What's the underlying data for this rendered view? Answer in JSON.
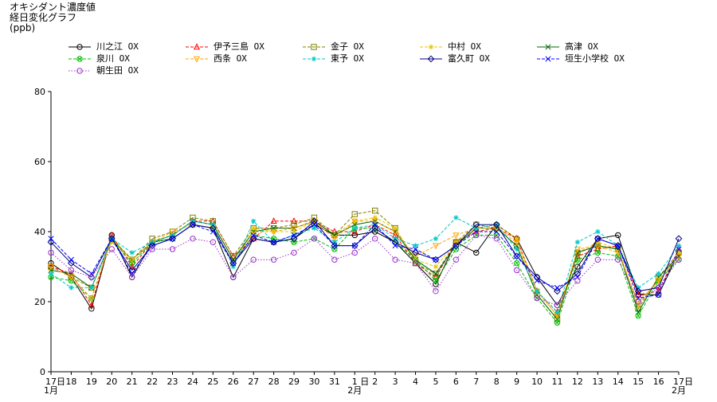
{
  "header": {
    "title": "オキシダント濃度値",
    "subtitle": "経日変化グラフ",
    "unit": "(ppb)"
  },
  "chart_data": {
    "type": "line",
    "title": "オキシダント濃度値 経日変化グラフ",
    "ylabel": "(ppb)",
    "ylim": [
      0,
      80
    ],
    "yticks": [
      0,
      20,
      40,
      60,
      80
    ],
    "categories": [
      "17",
      "18",
      "19",
      "20",
      "21",
      "22",
      "23",
      "24",
      "25",
      "26",
      "27",
      "28",
      "29",
      "30",
      "31",
      "1",
      "2",
      "3",
      "4",
      "5",
      "6",
      "7",
      "8",
      "9",
      "10",
      "11",
      "12",
      "13",
      "14",
      "15",
      "16",
      "17"
    ],
    "month_labels": [
      {
        "index": 0,
        "text": "1月"
      },
      {
        "index": 15,
        "text": "2月"
      },
      {
        "index": 31,
        "text": "2月"
      }
    ],
    "day_suffix": [
      {
        "index": 0,
        "text": "日"
      },
      {
        "index": 15,
        "text": "日"
      },
      {
        "index": 31,
        "text": "日"
      }
    ],
    "series": [
      {
        "name": "川之江 OX",
        "color": "#000000",
        "marker": "circle",
        "dash": "solid",
        "values": [
          31,
          27,
          18,
          39,
          27,
          37,
          38,
          42,
          41,
          27,
          38,
          37,
          38,
          42,
          39,
          39,
          40,
          37,
          31,
          25,
          37,
          34,
          42,
          38,
          27,
          19,
          30,
          38,
          39,
          22,
          22,
          34
        ]
      },
      {
        "name": "伊予三島 OX",
        "color": "#ff0000",
        "marker": "triangle",
        "dash": "dashed",
        "values": [
          30,
          28,
          19,
          39,
          30,
          37,
          39,
          43,
          43,
          33,
          38,
          43,
          43,
          43,
          40,
          40,
          42,
          39,
          31,
          27,
          37,
          40,
          41,
          38,
          23,
          17,
          33,
          35,
          36,
          22,
          23,
          35
        ]
      },
      {
        "name": "金子 OX",
        "color": "#808000",
        "marker": "square",
        "dash": "dashed",
        "values": [
          30,
          27,
          24,
          38,
          32,
          38,
          40,
          44,
          43,
          33,
          41,
          41,
          42,
          44,
          39,
          45,
          46,
          41,
          31,
          28,
          37,
          42,
          41,
          36,
          22,
          15,
          34,
          36,
          35,
          18,
          27,
          34
        ]
      },
      {
        "name": "中村 OX",
        "color": "#e6c800",
        "marker": "star",
        "dash": "dashed",
        "values": [
          29,
          28,
          24,
          37,
          32,
          37,
          39,
          43,
          42,
          32,
          41,
          40,
          40,
          43,
          39,
          43,
          44,
          41,
          32,
          30,
          37,
          41,
          42,
          38,
          23,
          16,
          34,
          37,
          35,
          19,
          26,
          34
        ]
      },
      {
        "name": "高津 OX",
        "color": "#006400",
        "marker": "x",
        "dash": "solid",
        "values": [
          29,
          28,
          24,
          38,
          32,
          37,
          39,
          43,
          42,
          32,
          40,
          41,
          41,
          43,
          39,
          42,
          43,
          40,
          32,
          28,
          36,
          41,
          41,
          36,
          22,
          15,
          34,
          36,
          35,
          17,
          27,
          33
        ]
      },
      {
        "name": "泉川 OX",
        "color": "#00c000",
        "marker": "circle-x",
        "dash": "dashed",
        "values": [
          27,
          26,
          21,
          38,
          31,
          37,
          38,
          42,
          41,
          31,
          39,
          38,
          37,
          38,
          35,
          41,
          41,
          37,
          32,
          26,
          35,
          39,
          39,
          31,
          21,
          14,
          32,
          34,
          33,
          16,
          26,
          32
        ]
      },
      {
        "name": "西条 OX",
        "color": "#ffa500",
        "marker": "triangle-down",
        "dash": "dashed",
        "values": [
          30,
          27,
          21,
          38,
          32,
          37,
          40,
          42,
          41,
          31,
          40,
          40,
          41,
          43,
          38,
          43,
          43,
          40,
          33,
          36,
          39,
          41,
          41,
          37,
          23,
          16,
          35,
          36,
          34,
          20,
          26,
          33
        ]
      },
      {
        "name": "東予 OX",
        "color": "#00c8c8",
        "marker": "star",
        "dash": "dashed",
        "values": [
          28,
          24,
          24,
          38,
          34,
          37,
          39,
          43,
          42,
          30,
          43,
          37,
          39,
          41,
          37,
          41,
          42,
          38,
          36,
          38,
          44,
          41,
          42,
          35,
          23,
          17,
          37,
          40,
          36,
          24,
          28,
          36
        ]
      },
      {
        "name": "富久町 OX",
        "color": "#000080",
        "marker": "diamond",
        "dash": "solid",
        "values": [
          37,
          31,
          27,
          38,
          29,
          36,
          38,
          42,
          41,
          31,
          38,
          37,
          38,
          43,
          36,
          36,
          41,
          37,
          34,
          32,
          36,
          42,
          42,
          33,
          27,
          23,
          28,
          38,
          36,
          23,
          24,
          38
        ]
      },
      {
        "name": "垣生小学校 OX",
        "color": "#0000ff",
        "marker": "x",
        "dash": "dashed",
        "values": [
          38,
          32,
          28,
          38,
          28,
          36,
          38,
          42,
          40,
          31,
          39,
          37,
          39,
          42,
          36,
          36,
          42,
          36,
          35,
          32,
          36,
          40,
          40,
          33,
          26,
          24,
          27,
          38,
          36,
          21,
          22,
          35
        ]
      },
      {
        "name": "朝生田 OX",
        "color": "#9932cc",
        "marker": "circle",
        "dash": "dotted",
        "values": [
          34,
          29,
          27,
          35,
          27,
          35,
          35,
          38,
          37,
          27,
          32,
          32,
          34,
          38,
          32,
          34,
          38,
          32,
          31,
          23,
          32,
          39,
          38,
          29,
          21,
          19,
          26,
          32,
          32,
          20,
          24,
          32
        ]
      }
    ]
  }
}
